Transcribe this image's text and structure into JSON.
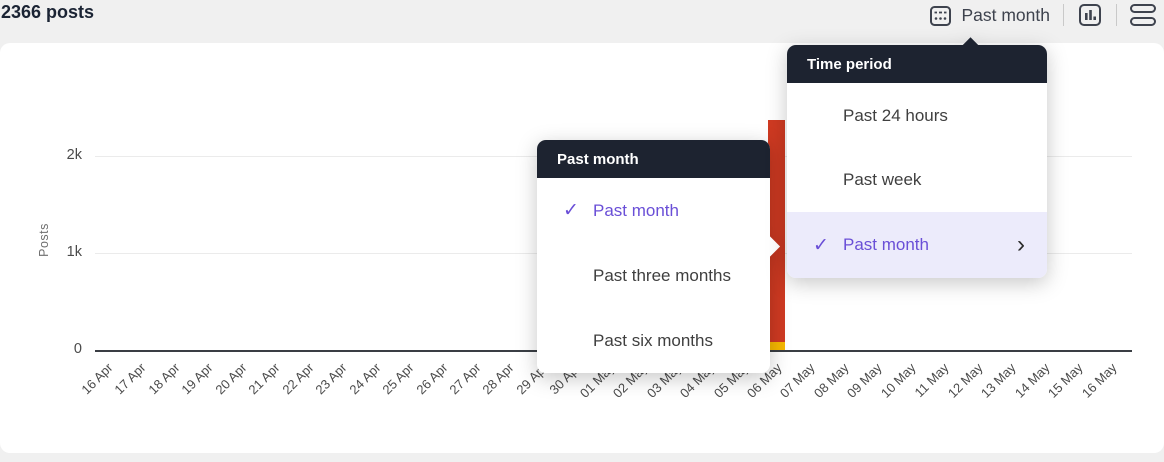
{
  "header": {
    "posts_count": "2366 posts"
  },
  "toolbar": {
    "time_range_button": {
      "label": "Past month",
      "icon": "calendar-icon"
    },
    "chart_view_button": {
      "icon": "bar-chart-icon"
    },
    "list_view_button": {
      "icon": "rows-icon"
    }
  },
  "menus": {
    "time_period": {
      "title": "Time period",
      "items": [
        {
          "label": "Past 24 hours",
          "selected": false
        },
        {
          "label": "Past week",
          "selected": false
        },
        {
          "label": "Past month",
          "selected": true,
          "has_submenu": true
        }
      ]
    },
    "past_month_submenu": {
      "title": "Past month",
      "items": [
        {
          "label": "Past month",
          "selected": true
        },
        {
          "label": "Past three months",
          "selected": false
        },
        {
          "label": "Past six months",
          "selected": false
        }
      ]
    }
  },
  "chart_data": {
    "type": "bar",
    "stacked": true,
    "title": "",
    "xlabel": "",
    "ylabel": "Posts",
    "grid": "horizontal",
    "legend": "none",
    "ylim": [
      0,
      2400
    ],
    "yticks": [
      {
        "label": "0",
        "value": 0
      },
      {
        "label": "1k",
        "value": 1000
      },
      {
        "label": "2k",
        "value": 2000
      }
    ],
    "x": [
      "16 Apr",
      "17 Apr",
      "18 Apr",
      "19 Apr",
      "20 Apr",
      "21 Apr",
      "22 Apr",
      "23 Apr",
      "24 Apr",
      "25 Apr",
      "26 Apr",
      "27 Apr",
      "28 Apr",
      "29 Apr",
      "30 Apr",
      "01 May",
      "02 May",
      "03 May",
      "04 May",
      "05 May",
      "06 May",
      "07 May",
      "08 May",
      "09 May",
      "10 May",
      "11 May",
      "12 May",
      "13 May",
      "14 May",
      "15 May",
      "16 May"
    ],
    "series": [
      {
        "name": "posts-primary",
        "color": "#cf3a22",
        "values": [
          0,
          0,
          0,
          0,
          0,
          0,
          0,
          0,
          0,
          0,
          0,
          0,
          0,
          0,
          0,
          0,
          0,
          0,
          0,
          0,
          2280,
          0,
          0,
          0,
          0,
          0,
          0,
          0,
          0,
          0,
          0
        ]
      },
      {
        "name": "posts-secondary",
        "color": "#f6b700",
        "values": [
          0,
          0,
          0,
          0,
          0,
          0,
          0,
          0,
          0,
          0,
          0,
          0,
          0,
          0,
          0,
          0,
          0,
          0,
          0,
          0,
          86,
          0,
          0,
          0,
          0,
          0,
          0,
          0,
          0,
          0,
          0
        ]
      }
    ],
    "total_posts": 2366
  },
  "colors": {
    "accent_purple": "#6a4fd7",
    "highlight_bg": "#ecebfb",
    "menu_header_bg": "#1d2330",
    "bar_red": "#cf3a22",
    "bar_yellow": "#f6b700",
    "page_bg": "#f0f0f0"
  }
}
